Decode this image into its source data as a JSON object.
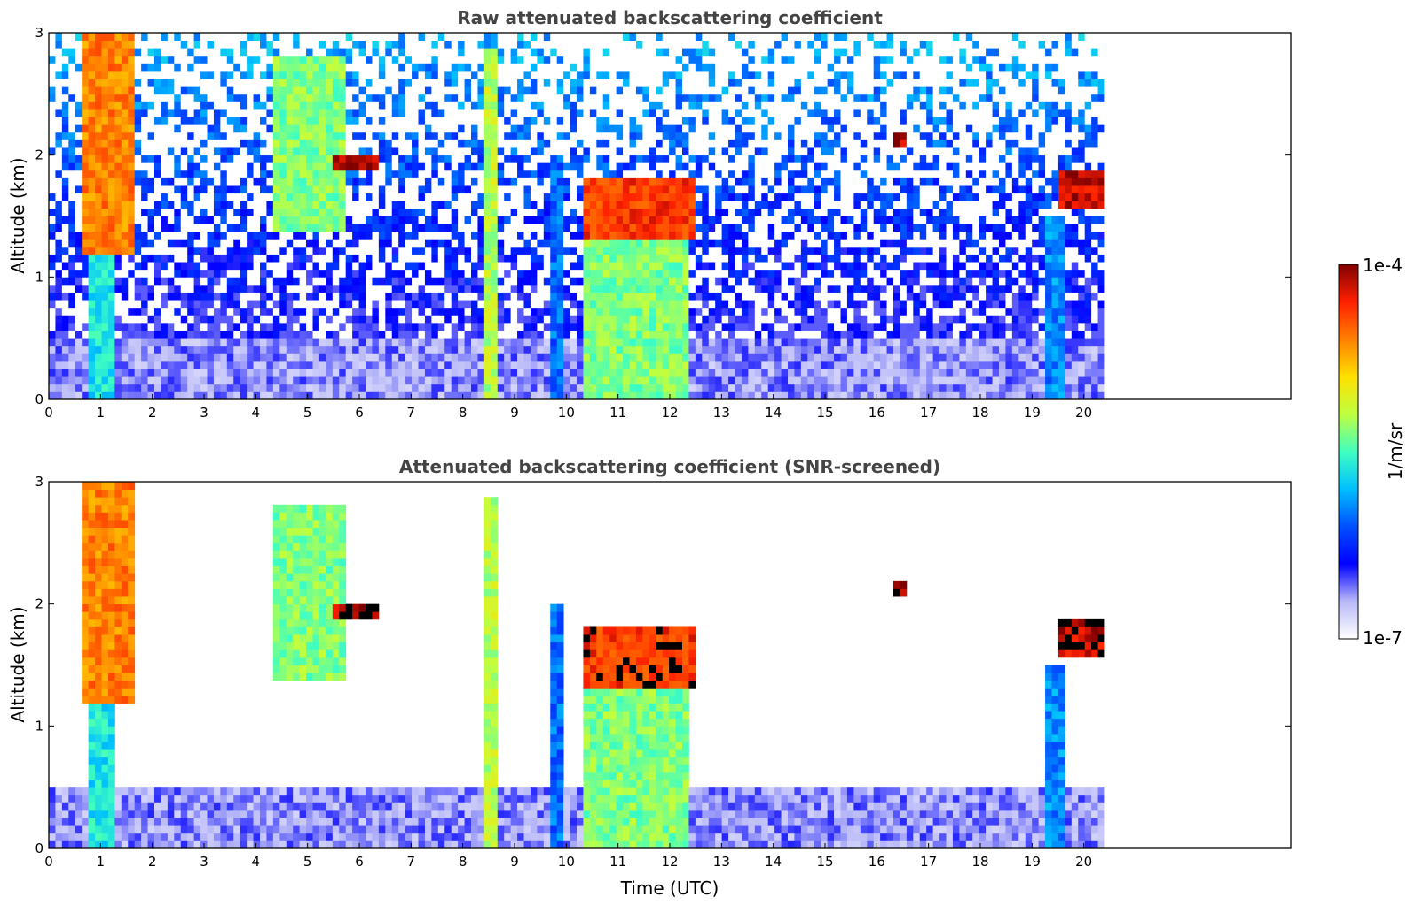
{
  "chart_data": [
    {
      "type": "heatmap",
      "title": "Raw attenuated backscattering coefficient",
      "xlabel": "",
      "ylabel": "Altitude (km)",
      "xlim": [
        0,
        24
      ],
      "ylim": [
        0,
        3
      ],
      "xticks": [
        "0",
        "1",
        "2",
        "3",
        "4",
        "5",
        "6",
        "7",
        "8",
        "9",
        "10",
        "11",
        "12",
        "13",
        "14",
        "15",
        "16",
        "17",
        "18",
        "19",
        "20"
      ],
      "yticks": [
        "0",
        "1",
        "2",
        "3"
      ],
      "data_extent_hours": 20.4,
      "screened": false,
      "features": [
        {
          "name": "boundary layer",
          "x": [
            0,
            20.4
          ],
          "y": [
            0,
            0.5
          ],
          "level": 0.12
        },
        {
          "name": "precipitation",
          "x": [
            0.8,
            1.3
          ],
          "y": [
            0,
            1.4
          ],
          "level": 0.45
        },
        {
          "name": "cloud",
          "x": [
            0.7,
            1.7
          ],
          "y": [
            1.2,
            3.0
          ],
          "level": 0.8
        },
        {
          "name": "aerosol layer",
          "x": [
            4.3,
            5.8
          ],
          "y": [
            1.4,
            2.8
          ],
          "level": 0.55
        },
        {
          "name": "cloud",
          "x": [
            5.5,
            6.4
          ],
          "y": [
            1.85,
            2.0
          ],
          "level": 0.97
        },
        {
          "name": "precipitation",
          "x": [
            8.45,
            8.65
          ],
          "y": [
            0,
            2.9
          ],
          "level": 0.6
        },
        {
          "name": "precipitation",
          "x": [
            9.75,
            9.9
          ],
          "y": [
            0,
            2.0
          ],
          "level": 0.32
        },
        {
          "name": "precipitation",
          "x": [
            10.3,
            12.4
          ],
          "y": [
            0,
            1.3
          ],
          "level": 0.55
        },
        {
          "name": "cloud",
          "x": [
            10.3,
            12.5
          ],
          "y": [
            1.3,
            1.8
          ],
          "level": 0.88
        },
        {
          "name": "cloud",
          "x": [
            16.3,
            16.6
          ],
          "y": [
            2.05,
            2.2
          ],
          "level": 0.97
        },
        {
          "name": "precipitation",
          "x": [
            19.3,
            19.6
          ],
          "y": [
            0,
            1.5
          ],
          "level": 0.35
        },
        {
          "name": "cloud",
          "x": [
            19.5,
            20.4
          ],
          "y": [
            1.55,
            1.9
          ],
          "level": 0.95
        }
      ]
    },
    {
      "type": "heatmap",
      "title": "Attenuated backscattering coefficient (SNR-screened)",
      "xlabel": "Time (UTC)",
      "ylabel": "Altitude (km)",
      "xlim": [
        0,
        24
      ],
      "ylim": [
        0,
        3
      ],
      "xticks": [
        "0",
        "1",
        "2",
        "3",
        "4",
        "5",
        "6",
        "7",
        "8",
        "9",
        "10",
        "11",
        "12",
        "13",
        "14",
        "15",
        "16",
        "17",
        "18",
        "19",
        "20"
      ],
      "yticks": [
        "0",
        "1",
        "2",
        "3"
      ],
      "data_extent_hours": 20.4,
      "screened": true
    }
  ],
  "colorbar": {
    "label": "1/m/sr",
    "min_label": "1e-7",
    "max_label": "1e-4",
    "colors": [
      "#ffffff",
      "#b8b8f8",
      "#0000ff",
      "#0050ff",
      "#00c0ff",
      "#40ffc0",
      "#c0ff40",
      "#ffe000",
      "#ff8000",
      "#ff2000",
      "#800000"
    ]
  }
}
